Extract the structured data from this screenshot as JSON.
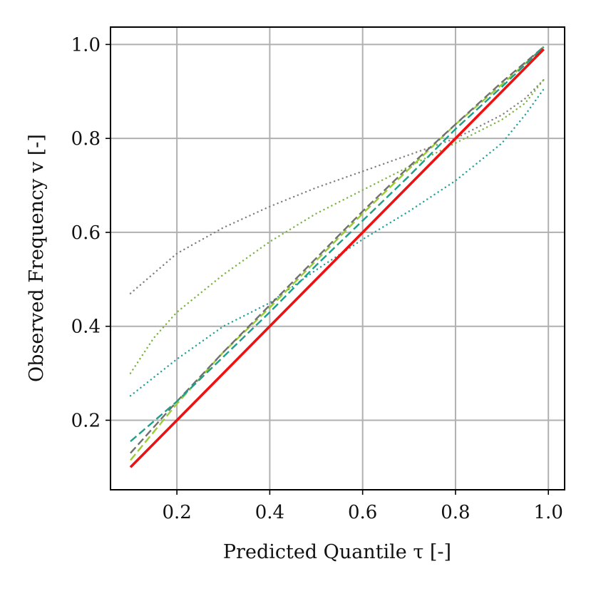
{
  "chart_data": {
    "type": "line",
    "title": "",
    "xlabel": "Predicted Quantile τ [-]",
    "ylabel": "Observed Frequency v [-]",
    "xlim": [
      0.057,
      1.035
    ],
    "ylim": [
      0.052,
      1.037
    ],
    "xticks": [
      0.2,
      0.4,
      0.6,
      0.8,
      1.0
    ],
    "xtick_labels": [
      "0.2",
      "0.4",
      "0.6",
      "0.8",
      "1.0"
    ],
    "yticks": [
      0.2,
      0.4,
      0.6,
      0.8,
      1.0
    ],
    "ytick_labels": [
      "0.2",
      "0.4",
      "0.6",
      "0.8",
      "1.0"
    ],
    "grid": true,
    "legend": "none",
    "series": [
      {
        "color": "#808080",
        "style": "dotted",
        "x": [
          0.1,
          0.2,
          0.3,
          0.4,
          0.5,
          0.6,
          0.7,
          0.8,
          0.9,
          0.95,
          0.99
        ],
        "y": [
          0.47,
          0.555,
          0.61,
          0.655,
          0.695,
          0.73,
          0.765,
          0.8,
          0.85,
          0.885,
          0.925
        ]
      },
      {
        "color": "#7cb342",
        "style": "dotted",
        "x": [
          0.1,
          0.15,
          0.2,
          0.3,
          0.4,
          0.5,
          0.6,
          0.7,
          0.8,
          0.9,
          0.95,
          0.99
        ],
        "y": [
          0.3,
          0.375,
          0.43,
          0.51,
          0.58,
          0.64,
          0.69,
          0.74,
          0.79,
          0.84,
          0.875,
          0.925
        ]
      },
      {
        "color": "#2aa198",
        "style": "dotted",
        "x": [
          0.1,
          0.2,
          0.3,
          0.4,
          0.5,
          0.6,
          0.7,
          0.8,
          0.9,
          0.95,
          0.99
        ],
        "y": [
          0.252,
          0.33,
          0.4,
          0.45,
          0.52,
          0.585,
          0.645,
          0.71,
          0.79,
          0.85,
          0.905
        ]
      },
      {
        "color": "#9acd32",
        "style": "dashed",
        "x": [
          0.1,
          0.2,
          0.3,
          0.4,
          0.5,
          0.6,
          0.7,
          0.8,
          0.9,
          0.99
        ],
        "y": [
          0.115,
          0.235,
          0.345,
          0.44,
          0.54,
          0.64,
          0.735,
          0.83,
          0.915,
          0.995
        ]
      },
      {
        "color": "#707070",
        "style": "dashed",
        "x": [
          0.1,
          0.2,
          0.3,
          0.4,
          0.5,
          0.6,
          0.7,
          0.8,
          0.9,
          0.99
        ],
        "y": [
          0.13,
          0.24,
          0.345,
          0.445,
          0.545,
          0.645,
          0.74,
          0.83,
          0.92,
          0.995
        ]
      },
      {
        "color": "#1f9e89",
        "style": "dashed",
        "x": [
          0.1,
          0.2,
          0.3,
          0.4,
          0.5,
          0.6,
          0.7,
          0.8,
          0.9,
          0.99
        ],
        "y": [
          0.155,
          0.24,
          0.335,
          0.43,
          0.53,
          0.625,
          0.72,
          0.82,
          0.91,
          0.995
        ]
      },
      {
        "color": "#ee1111",
        "style": "solid",
        "x": [
          0.1,
          0.99
        ],
        "y": [
          0.1,
          0.99
        ]
      }
    ]
  }
}
